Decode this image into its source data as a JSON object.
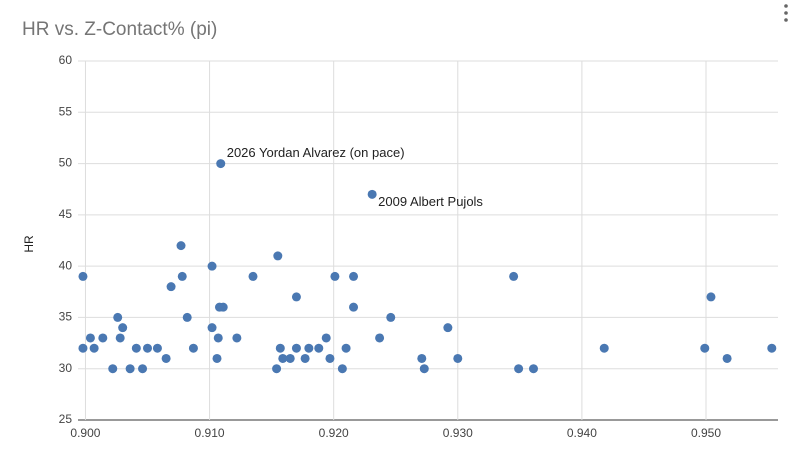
{
  "chart_data": {
    "type": "scatter",
    "title": "HR vs. Z-Contact% (pi)",
    "y_label": "HR",
    "color": "#4a78b2",
    "grid": true,
    "x": [
      0.8998,
      0.8998,
      0.9004,
      0.9007,
      0.9014,
      0.9022,
      0.9026,
      0.9028,
      0.903,
      0.9036,
      0.9041,
      0.9046,
      0.905,
      0.9058,
      0.9065,
      0.9069,
      0.9077,
      0.9078,
      0.9082,
      0.9087,
      0.9102,
      0.9102,
      0.9106,
      0.9107,
      0.9108,
      0.9109,
      0.9111,
      0.9122,
      0.9135,
      0.9154,
      0.9155,
      0.9157,
      0.9159,
      0.9165,
      0.917,
      0.917,
      0.9177,
      0.918,
      0.9188,
      0.9194,
      0.9197,
      0.9201,
      0.9207,
      0.921,
      0.9216,
      0.9216,
      0.9231,
      0.9237,
      0.9246,
      0.9271,
      0.9273,
      0.9292,
      0.93,
      0.9345,
      0.9349,
      0.9361,
      0.9418,
      0.9499,
      0.9504,
      0.9517,
      0.9553
    ],
    "values": [
      39,
      32,
      33,
      32,
      33,
      30,
      35,
      33,
      34,
      30,
      32,
      30,
      32,
      32,
      31,
      38,
      42,
      39,
      35,
      32,
      40,
      34,
      31,
      33,
      36,
      50,
      36,
      33,
      39,
      30,
      41,
      32,
      31,
      31,
      37,
      32,
      31,
      32,
      32,
      33,
      31,
      39,
      30,
      32,
      39,
      36,
      47,
      33,
      35,
      31,
      30,
      34,
      31,
      39,
      30,
      30,
      32,
      32,
      37,
      31,
      32
    ],
    "point_labels": [
      null,
      null,
      null,
      null,
      null,
      null,
      null,
      null,
      null,
      null,
      null,
      null,
      null,
      null,
      null,
      null,
      null,
      null,
      null,
      null,
      null,
      null,
      null,
      null,
      null,
      "2026 Yordan Alvarez (on pace)",
      null,
      null,
      null,
      null,
      null,
      null,
      null,
      null,
      null,
      null,
      null,
      null,
      null,
      null,
      null,
      null,
      null,
      null,
      null,
      null,
      "2009 Albert Pujols",
      null,
      null,
      null,
      null,
      null,
      null,
      null,
      null,
      null,
      null,
      null,
      null,
      null,
      null
    ],
    "xlim": [
      0.8994,
      0.9558
    ],
    "ylim": [
      25,
      60
    ],
    "xticks": [
      {
        "value": 0.9,
        "label": "0.900"
      },
      {
        "value": 0.91,
        "label": "0.910"
      },
      {
        "value": 0.92,
        "label": "0.920"
      },
      {
        "value": 0.93,
        "label": "0.930"
      },
      {
        "value": 0.94,
        "label": "0.940"
      },
      {
        "value": 0.95,
        "label": "0.950"
      }
    ],
    "yticks": [
      25,
      30,
      35,
      40,
      45,
      50,
      55,
      60
    ]
  }
}
